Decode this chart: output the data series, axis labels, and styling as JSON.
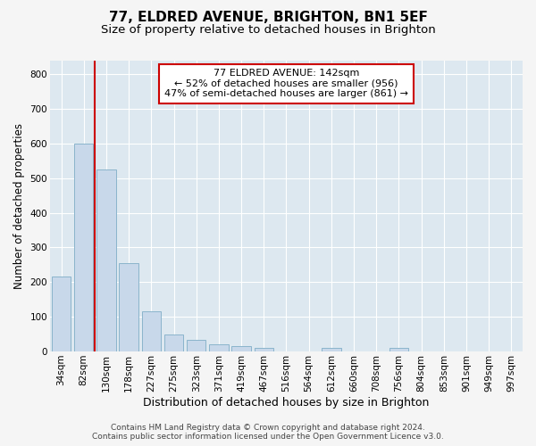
{
  "title": "77, ELDRED AVENUE, BRIGHTON, BN1 5EF",
  "subtitle": "Size of property relative to detached houses in Brighton",
  "xlabel": "Distribution of detached houses by size in Brighton",
  "ylabel": "Number of detached properties",
  "categories": [
    "34sqm",
    "82sqm",
    "130sqm",
    "178sqm",
    "227sqm",
    "275sqm",
    "323sqm",
    "371sqm",
    "419sqm",
    "467sqm",
    "516sqm",
    "564sqm",
    "612sqm",
    "660sqm",
    "708sqm",
    "756sqm",
    "804sqm",
    "853sqm",
    "901sqm",
    "949sqm",
    "997sqm"
  ],
  "values": [
    215,
    600,
    525,
    255,
    115,
    50,
    33,
    20,
    16,
    11,
    0,
    0,
    10,
    0,
    0,
    10,
    0,
    0,
    0,
    0,
    0
  ],
  "bar_color": "#c8d8ea",
  "bar_edge_color": "#8ab4cc",
  "highlight_index": 2,
  "highlight_line_color": "#cc0000",
  "ylim": [
    0,
    840
  ],
  "yticks": [
    0,
    100,
    200,
    300,
    400,
    500,
    600,
    700,
    800
  ],
  "annotation_text": "77 ELDRED AVENUE: 142sqm\n← 52% of detached houses are smaller (956)\n47% of semi-detached houses are larger (861) →",
  "annotation_box_facecolor": "#ffffff",
  "annotation_box_edgecolor": "#cc0000",
  "footer_line1": "Contains HM Land Registry data © Crown copyright and database right 2024.",
  "footer_line2": "Contains public sector information licensed under the Open Government Licence v3.0.",
  "fig_facecolor": "#f5f5f5",
  "plot_facecolor": "#dde8f0",
  "grid_color": "#ffffff",
  "title_fontsize": 11,
  "subtitle_fontsize": 9.5,
  "xlabel_fontsize": 9,
  "ylabel_fontsize": 8.5,
  "tick_fontsize": 7.5,
  "annotation_fontsize": 8,
  "footer_fontsize": 6.5
}
